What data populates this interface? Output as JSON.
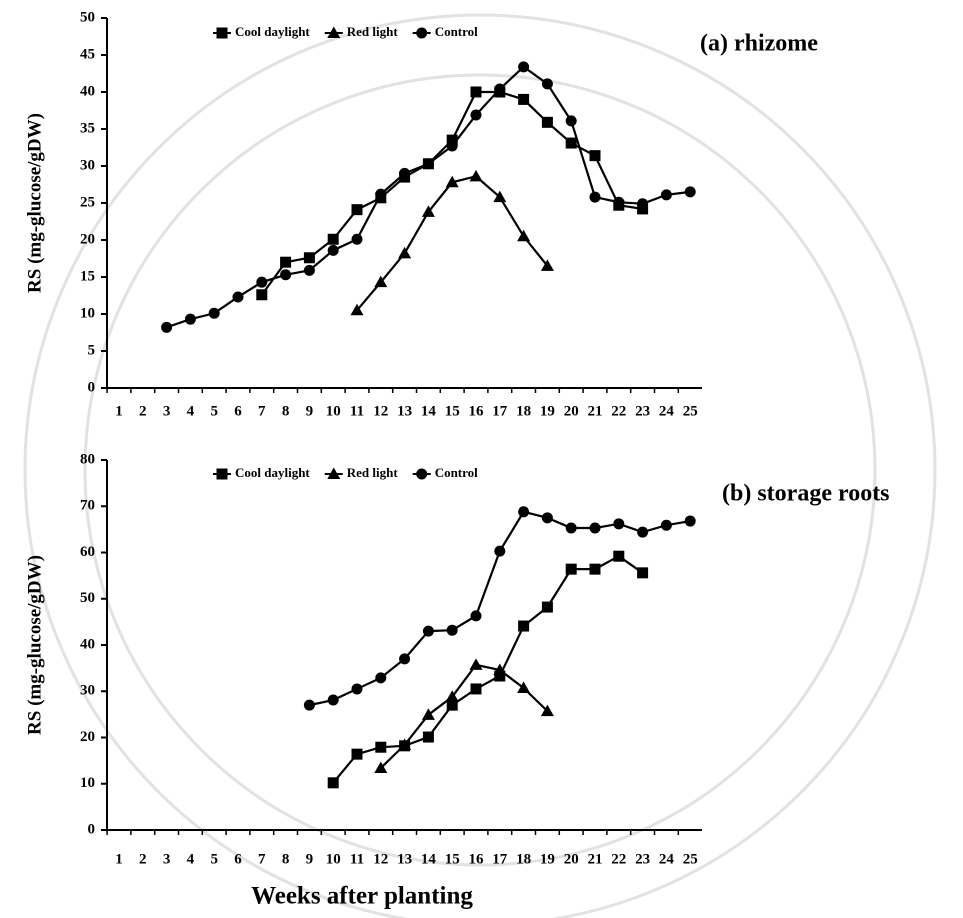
{
  "chart_data": [
    {
      "type": "line",
      "title": "(a) rhizome",
      "y_label": "RS (mg-glucose/gDW)",
      "legend": "top",
      "categories": [
        "1",
        "2",
        "3",
        "4",
        "5",
        "6",
        "7",
        "8",
        "9",
        "10",
        "11",
        "12",
        "13",
        "14",
        "15",
        "16",
        "17",
        "18",
        "19",
        "20",
        "21",
        "22",
        "23",
        "24",
        "25"
      ],
      "ylim": [
        0,
        50
      ],
      "yticks": [
        0,
        5,
        10,
        15,
        20,
        25,
        30,
        35,
        40,
        45,
        50
      ],
      "series": [
        {
          "name": "Cool daylight",
          "color": "#000000",
          "marker": "square",
          "values": [
            null,
            null,
            null,
            null,
            null,
            null,
            12.6,
            17.0,
            17.6,
            20.1,
            24.1,
            25.7,
            28.5,
            30.3,
            33.5,
            40.0,
            40.0,
            39.0,
            35.9,
            33.1,
            31.4,
            24.7,
            24.2,
            null,
            null
          ]
        },
        {
          "name": "Red light",
          "color": "#000000",
          "marker": "triangle",
          "values": [
            null,
            null,
            null,
            null,
            null,
            null,
            null,
            null,
            null,
            null,
            10.5,
            14.3,
            18.2,
            23.8,
            27.8,
            28.6,
            25.8,
            20.5,
            16.5,
            null,
            null,
            null,
            null,
            null,
            null
          ]
        },
        {
          "name": "Control",
          "color": "#000000",
          "marker": "circle",
          "values": [
            null,
            null,
            8.2,
            9.3,
            10.1,
            12.3,
            14.3,
            15.3,
            15.9,
            18.6,
            20.1,
            26.2,
            29.0,
            30.3,
            32.7,
            36.9,
            40.4,
            43.4,
            41.1,
            36.1,
            25.8,
            25.1,
            24.9,
            26.1,
            26.5
          ]
        }
      ]
    },
    {
      "type": "line",
      "title": "(b) storage roots",
      "y_label": "RS (mg-glucose/gDW)",
      "x_label": "Weeks after planting",
      "legend": "top",
      "categories": [
        "1",
        "2",
        "3",
        "4",
        "5",
        "6",
        "7",
        "8",
        "9",
        "10",
        "11",
        "12",
        "13",
        "14",
        "15",
        "16",
        "17",
        "18",
        "19",
        "20",
        "21",
        "22",
        "23",
        "24",
        "25"
      ],
      "ylim": [
        0,
        80
      ],
      "yticks": [
        0,
        10,
        20,
        30,
        40,
        50,
        60,
        70,
        80
      ],
      "series": [
        {
          "name": "Cool daylight",
          "color": "#000000",
          "marker": "square",
          "values": [
            null,
            null,
            null,
            null,
            null,
            null,
            null,
            null,
            null,
            10.2,
            16.4,
            17.9,
            18.2,
            20.1,
            27.0,
            30.5,
            33.3,
            44.1,
            48.2,
            56.4,
            56.4,
            59.2,
            55.6,
            null,
            null
          ]
        },
        {
          "name": "Red light",
          "color": "#000000",
          "marker": "triangle",
          "values": [
            null,
            null,
            null,
            null,
            null,
            null,
            null,
            null,
            null,
            null,
            null,
            13.4,
            18.4,
            24.9,
            28.8,
            35.7,
            34.6,
            30.7,
            25.7,
            null,
            null,
            null,
            null,
            null,
            null
          ]
        },
        {
          "name": "Control",
          "color": "#000000",
          "marker": "circle",
          "values": [
            null,
            null,
            null,
            null,
            null,
            null,
            null,
            null,
            27.0,
            28.1,
            30.5,
            32.9,
            37.0,
            43.0,
            43.2,
            46.3,
            60.3,
            68.8,
            67.5,
            65.3,
            65.3,
            66.2,
            64.4,
            65.9,
            66.8
          ]
        }
      ]
    }
  ]
}
